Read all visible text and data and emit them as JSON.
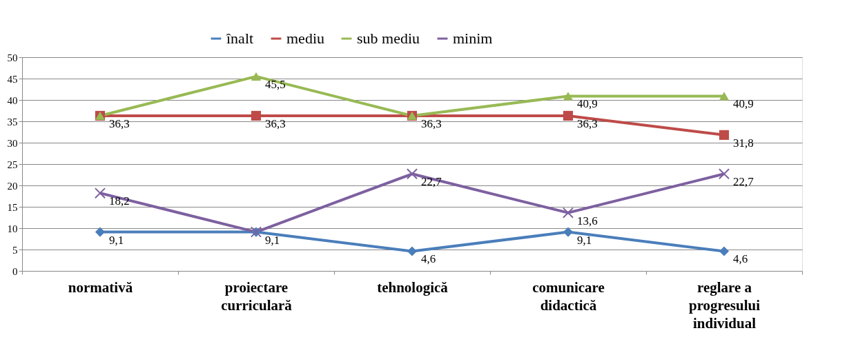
{
  "chart_data": {
    "type": "line",
    "categories": [
      "normativă",
      "proiectare curriculară",
      "tehnologică",
      "comunicare didactică",
      "reglare a progresului individual"
    ],
    "series": [
      {
        "name": "înalt",
        "color": "#4a7ebb",
        "marker": "diamond",
        "values": [
          9.1,
          9.1,
          4.6,
          9.1,
          4.6
        ],
        "value_labels": [
          "9,1",
          "9,1",
          "4,6",
          "9,1",
          "4,6"
        ]
      },
      {
        "name": "mediu",
        "color": "#be4b48",
        "marker": "square",
        "values": [
          36.3,
          36.3,
          36.3,
          36.3,
          31.8
        ],
        "value_labels": [
          "36,3",
          "36,3",
          "36,3",
          "36,3",
          "31,8"
        ]
      },
      {
        "name": "sub mediu",
        "color": "#98b954",
        "marker": "triangle",
        "values": [
          36.3,
          45.5,
          36.3,
          40.9,
          40.9
        ],
        "value_labels": [
          null,
          "45,5",
          null,
          "40,9",
          "40,9"
        ]
      },
      {
        "name": "minim",
        "color": "#7d60a0",
        "marker": "cross",
        "values": [
          18.2,
          9.1,
          22.7,
          13.6,
          22.7
        ],
        "value_labels": [
          "18,2",
          null,
          "22,7",
          "13,6",
          "22,7"
        ]
      }
    ],
    "ylim": [
      0,
      50
    ],
    "yticks": [
      0,
      5,
      10,
      15,
      20,
      25,
      30,
      35,
      40,
      45,
      50
    ],
    "grid": "y",
    "legend": "top",
    "line_style": "solid"
  }
}
